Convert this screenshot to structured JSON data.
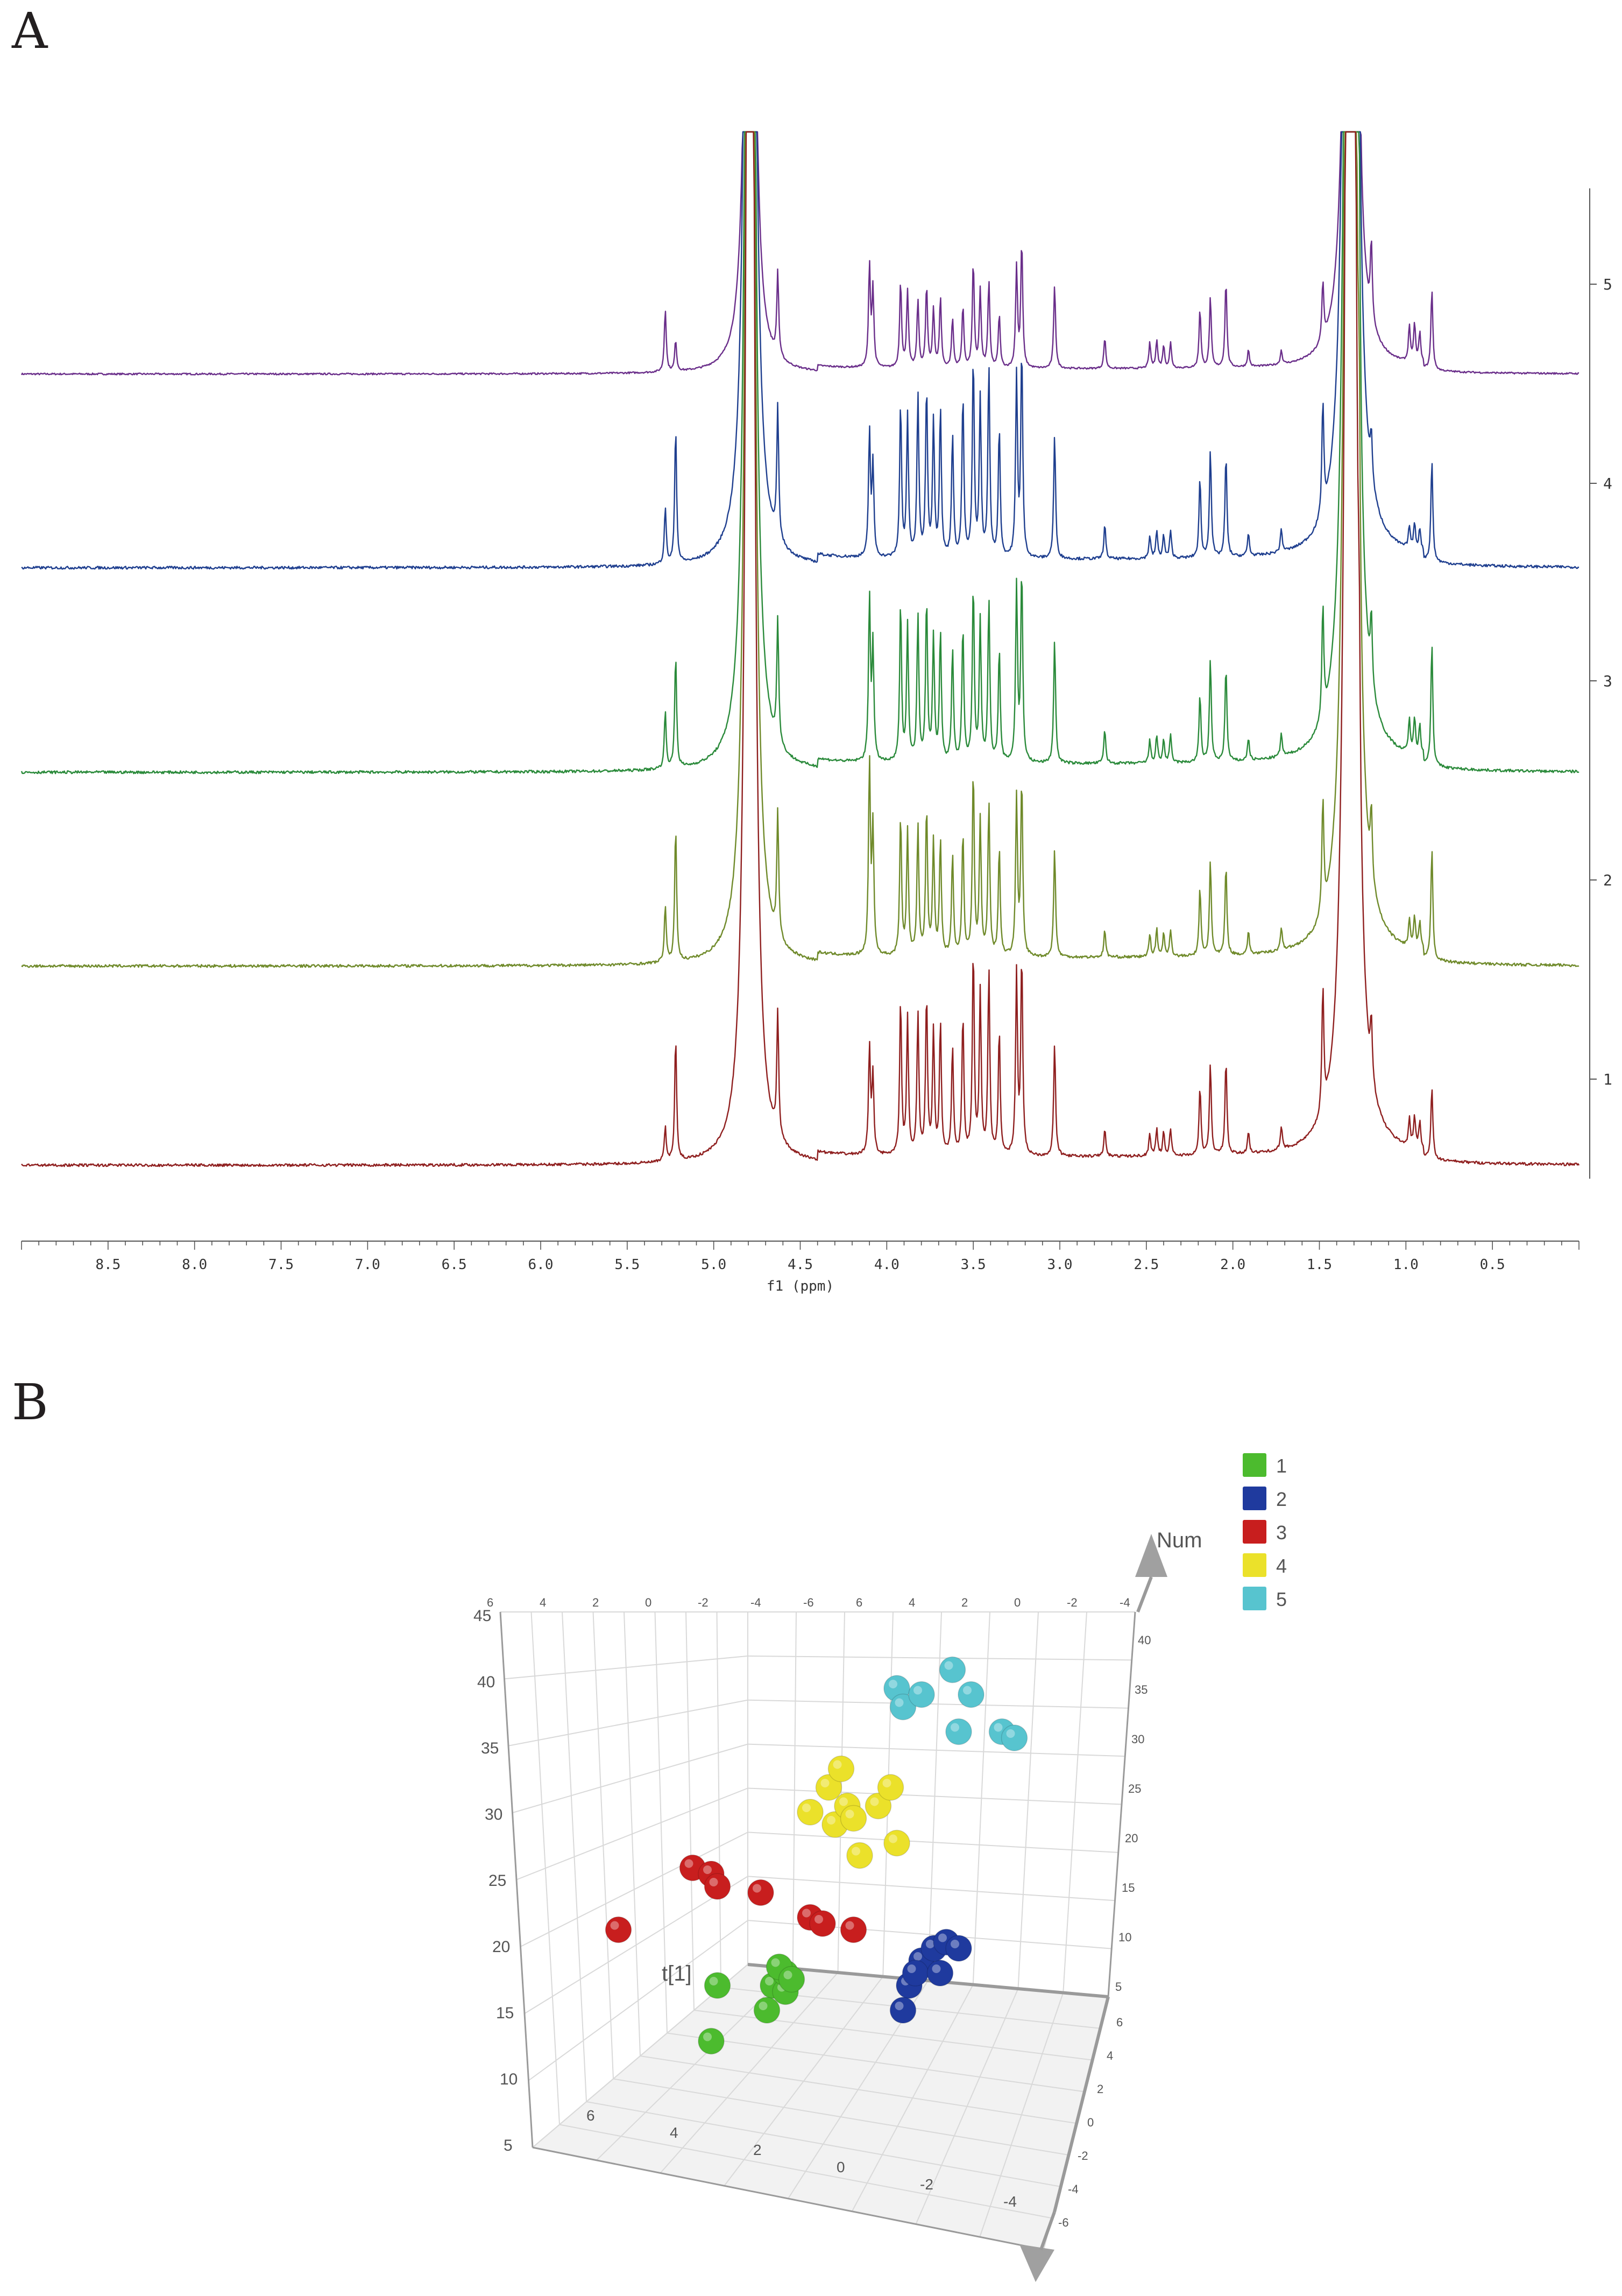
{
  "figure": {
    "panel_a_label": "A",
    "panel_b_label": "B"
  },
  "chart_data": [
    {
      "type": "line",
      "title": "",
      "xlabel": "f1 (ppm)",
      "ylabel": "",
      "xlim": [
        9.0,
        0.0
      ],
      "x_ticks": [
        "8.5",
        "8.0",
        "7.5",
        "7.0",
        "6.5",
        "6.0",
        "5.5",
        "5.0",
        "4.5",
        "4.0",
        "3.5",
        "3.0",
        "2.5",
        "2.0",
        "1.5",
        "1.0",
        "0.5"
      ],
      "trace_labels": [
        "5",
        "4",
        "3",
        "2",
        "1"
      ],
      "series": [
        {
          "name": "5",
          "color": "#6a2e8a",
          "peak_scale": 0.62,
          "peaks": [
            [
              5.28,
              0.45
            ],
            [
              5.22,
              0.22
            ],
            [
              4.79,
              12
            ],
            [
              4.63,
              0.6
            ],
            [
              4.1,
              0.72
            ],
            [
              4.08,
              0.55
            ],
            [
              3.92,
              0.62
            ],
            [
              3.88,
              0.55
            ],
            [
              3.82,
              0.48
            ],
            [
              3.77,
              0.58
            ],
            [
              3.73,
              0.42
            ],
            [
              3.69,
              0.5
            ],
            [
              3.62,
              0.35
            ],
            [
              3.56,
              0.44
            ],
            [
              3.5,
              0.75
            ],
            [
              3.46,
              0.55
            ],
            [
              3.41,
              0.62
            ],
            [
              3.35,
              0.38
            ],
            [
              3.25,
              0.72
            ],
            [
              3.22,
              0.9
            ],
            [
              3.03,
              0.6
            ],
            [
              2.74,
              0.22
            ],
            [
              2.48,
              0.18
            ],
            [
              2.44,
              0.2
            ],
            [
              2.4,
              0.16
            ],
            [
              2.36,
              0.18
            ],
            [
              2.19,
              0.42
            ],
            [
              2.13,
              0.5
            ],
            [
              2.04,
              0.62
            ],
            [
              1.91,
              0.12
            ],
            [
              1.72,
              0.1
            ],
            [
              1.48,
              0.42
            ],
            [
              1.32,
              18
            ],
            [
              1.27,
              0.85
            ],
            [
              1.2,
              0.55
            ],
            [
              0.98,
              0.26
            ],
            [
              0.95,
              0.28
            ],
            [
              0.92,
              0.22
            ],
            [
              0.85,
              0.58
            ]
          ]
        },
        {
          "name": "4",
          "color": "#1f3f8f",
          "peak_scale": 1.0,
          "peaks": [
            [
              5.28,
              0.25
            ],
            [
              5.22,
              0.6
            ],
            [
              4.79,
              12
            ],
            [
              4.63,
              0.58
            ],
            [
              4.1,
              0.55
            ],
            [
              4.08,
              0.4
            ],
            [
              3.92,
              0.68
            ],
            [
              3.88,
              0.62
            ],
            [
              3.82,
              0.72
            ],
            [
              3.77,
              0.75
            ],
            [
              3.73,
              0.6
            ],
            [
              3.69,
              0.66
            ],
            [
              3.62,
              0.55
            ],
            [
              3.56,
              0.72
            ],
            [
              3.5,
              0.88
            ],
            [
              3.46,
              0.7
            ],
            [
              3.41,
              0.85
            ],
            [
              3.35,
              0.58
            ],
            [
              3.25,
              0.8
            ],
            [
              3.22,
              0.92
            ],
            [
              3.03,
              0.55
            ],
            [
              2.74,
              0.15
            ],
            [
              2.48,
              0.1
            ],
            [
              2.44,
              0.12
            ],
            [
              2.4,
              0.1
            ],
            [
              2.36,
              0.12
            ],
            [
              2.19,
              0.35
            ],
            [
              2.13,
              0.48
            ],
            [
              2.04,
              0.45
            ],
            [
              1.91,
              0.1
            ],
            [
              1.72,
              0.1
            ],
            [
              1.48,
              0.5
            ],
            [
              1.32,
              18
            ],
            [
              1.27,
              0.48
            ],
            [
              1.2,
              0.2
            ],
            [
              0.98,
              0.1
            ],
            [
              0.95,
              0.12
            ],
            [
              0.92,
              0.1
            ],
            [
              0.85,
              0.45
            ]
          ]
        },
        {
          "name": "3",
          "color": "#2a8a3a",
          "peak_scale": 1.0,
          "peaks": [
            [
              5.28,
              0.25
            ],
            [
              5.22,
              0.5
            ],
            [
              4.79,
              12
            ],
            [
              4.63,
              0.55
            ],
            [
              4.1,
              0.72
            ],
            [
              4.08,
              0.5
            ],
            [
              3.92,
              0.7
            ],
            [
              3.88,
              0.6
            ],
            [
              3.82,
              0.65
            ],
            [
              3.77,
              0.72
            ],
            [
              3.73,
              0.55
            ],
            [
              3.69,
              0.58
            ],
            [
              3.62,
              0.5
            ],
            [
              3.56,
              0.6
            ],
            [
              3.5,
              0.78
            ],
            [
              3.46,
              0.62
            ],
            [
              3.41,
              0.72
            ],
            [
              3.35,
              0.5
            ],
            [
              3.25,
              0.78
            ],
            [
              3.22,
              0.85
            ],
            [
              3.03,
              0.55
            ],
            [
              2.74,
              0.15
            ],
            [
              2.48,
              0.1
            ],
            [
              2.44,
              0.12
            ],
            [
              2.4,
              0.1
            ],
            [
              2.36,
              0.12
            ],
            [
              2.19,
              0.3
            ],
            [
              2.13,
              0.45
            ],
            [
              2.04,
              0.42
            ],
            [
              1.91,
              0.1
            ],
            [
              1.72,
              0.1
            ],
            [
              1.48,
              0.5
            ],
            [
              1.32,
              18
            ],
            [
              1.27,
              0.78
            ],
            [
              1.2,
              0.3
            ],
            [
              0.98,
              0.15
            ],
            [
              0.95,
              0.16
            ],
            [
              0.92,
              0.14
            ],
            [
              0.85,
              0.55
            ]
          ]
        },
        {
          "name": "2",
          "color": "#6f8a2a",
          "peak_scale": 1.0,
          "peaks": [
            [
              5.28,
              0.25
            ],
            [
              5.22,
              0.6
            ],
            [
              4.79,
              12
            ],
            [
              4.63,
              0.55
            ],
            [
              4.1,
              0.85
            ],
            [
              4.08,
              0.55
            ],
            [
              3.92,
              0.62
            ],
            [
              3.88,
              0.55
            ],
            [
              3.82,
              0.58
            ],
            [
              3.77,
              0.65
            ],
            [
              3.73,
              0.5
            ],
            [
              3.69,
              0.52
            ],
            [
              3.62,
              0.45
            ],
            [
              3.56,
              0.55
            ],
            [
              3.5,
              0.82
            ],
            [
              3.46,
              0.6
            ],
            [
              3.41,
              0.68
            ],
            [
              3.35,
              0.48
            ],
            [
              3.25,
              0.7
            ],
            [
              3.22,
              0.78
            ],
            [
              3.03,
              0.48
            ],
            [
              2.74,
              0.12
            ],
            [
              2.48,
              0.1
            ],
            [
              2.44,
              0.12
            ],
            [
              2.4,
              0.1
            ],
            [
              2.36,
              0.12
            ],
            [
              2.19,
              0.3
            ],
            [
              2.13,
              0.42
            ],
            [
              2.04,
              0.4
            ],
            [
              1.91,
              0.1
            ],
            [
              1.72,
              0.1
            ],
            [
              1.48,
              0.5
            ],
            [
              1.32,
              18
            ],
            [
              1.27,
              0.72
            ],
            [
              1.2,
              0.3
            ],
            [
              0.98,
              0.12
            ],
            [
              0.95,
              0.14
            ],
            [
              0.92,
              0.12
            ],
            [
              0.85,
              0.5
            ]
          ]
        },
        {
          "name": "1",
          "color": "#8f1f1f",
          "peak_scale": 1.0,
          "peaks": [
            [
              5.28,
              0.15
            ],
            [
              5.22,
              0.55
            ],
            [
              4.79,
              12
            ],
            [
              4.63,
              0.55
            ],
            [
              4.1,
              0.48
            ],
            [
              4.08,
              0.35
            ],
            [
              3.92,
              0.68
            ],
            [
              3.88,
              0.6
            ],
            [
              3.82,
              0.62
            ],
            [
              3.77,
              0.7
            ],
            [
              3.73,
              0.55
            ],
            [
              3.69,
              0.58
            ],
            [
              3.62,
              0.48
            ],
            [
              3.56,
              0.62
            ],
            [
              3.5,
              0.9
            ],
            [
              3.46,
              0.72
            ],
            [
              3.41,
              0.82
            ],
            [
              3.35,
              0.55
            ],
            [
              3.25,
              0.8
            ],
            [
              3.22,
              0.88
            ],
            [
              3.03,
              0.5
            ],
            [
              2.74,
              0.12
            ],
            [
              2.48,
              0.1
            ],
            [
              2.44,
              0.12
            ],
            [
              2.4,
              0.1
            ],
            [
              2.36,
              0.12
            ],
            [
              2.19,
              0.3
            ],
            [
              2.13,
              0.4
            ],
            [
              2.04,
              0.42
            ],
            [
              1.91,
              0.1
            ],
            [
              1.72,
              0.1
            ],
            [
              1.48,
              0.55
            ],
            [
              1.32,
              18
            ],
            [
              1.27,
              0.6
            ],
            [
              1.2,
              0.25
            ],
            [
              0.98,
              0.12
            ],
            [
              0.95,
              0.14
            ],
            [
              0.92,
              0.12
            ],
            [
              0.85,
              0.32
            ]
          ]
        }
      ]
    },
    {
      "type": "scatter",
      "title": "",
      "xlabel": "t[1]",
      "zlabel": "Num",
      "left_axis_ticks": [
        "45",
        "40",
        "35",
        "30",
        "25",
        "20",
        "15",
        "10",
        "5"
      ],
      "top_axis_ticks": [
        "6",
        "4",
        "2",
        "0",
        "-2",
        "-4",
        "-6",
        "6",
        "4",
        "2",
        "0",
        "-2",
        "-4"
      ],
      "right_axis_ticks": [
        "40",
        "35",
        "30",
        "25",
        "20",
        "15",
        "10",
        "5"
      ],
      "front_axis_ticks": [
        "6",
        "4",
        "2",
        "0",
        "-2",
        "-4"
      ],
      "depth_axis_ticks": [
        "6",
        "4",
        "2",
        "0",
        "-2",
        "-4",
        "-6"
      ],
      "legend": [
        {
          "label": "1",
          "color": "#4cbb2e"
        },
        {
          "label": "2",
          "color": "#1f3a9e"
        },
        {
          "label": "3",
          "color": "#c81e1e"
        },
        {
          "label": "4",
          "color": "#ebe12a"
        },
        {
          "label": "5",
          "color": "#57c4cf"
        }
      ],
      "points_note": "approximate projected positions (x: left→right in plot plane 0-100, y: bottom→top 0-100) read from rendered view",
      "groups": [
        {
          "label": "1",
          "points": [
            [
              29,
              34
            ],
            [
              28,
              25
            ],
            [
              38,
              34
            ],
            [
              37,
              30
            ],
            [
              40,
              33
            ],
            [
              40,
              36
            ],
            [
              39,
              37
            ],
            [
              41,
              35
            ]
          ]
        },
        {
          "label": "2",
          "points": [
            [
              60,
              34
            ],
            [
              62,
              38
            ],
            [
              61,
              36
            ],
            [
              59,
              30
            ],
            [
              65,
              36
            ],
            [
              64,
              40
            ],
            [
              66,
              41
            ],
            [
              68,
              40
            ]
          ]
        },
        {
          "label": "3",
          "points": [
            [
              13,
              43
            ],
            [
              25,
              53
            ],
            [
              28,
              52
            ],
            [
              29,
              50
            ],
            [
              36,
              49
            ],
            [
              44,
              45
            ],
            [
              46,
              44
            ],
            [
              51,
              43
            ]
          ]
        },
        {
          "label": "4",
          "points": [
            [
              44,
              62
            ],
            [
              47,
              66
            ],
            [
              48,
              60
            ],
            [
              50,
              63
            ],
            [
              51,
              61
            ],
            [
              52,
              55
            ],
            [
              49,
              69
            ],
            [
              55,
              63
            ],
            [
              58,
              57
            ],
            [
              57,
              66
            ]
          ]
        },
        {
          "label": "5",
          "points": [
            [
              58,
              82
            ],
            [
              59,
              79
            ],
            [
              62,
              81
            ],
            [
              67,
              85
            ],
            [
              70,
              81
            ],
            [
              68,
              75
            ],
            [
              75,
              75
            ],
            [
              77,
              74
            ]
          ]
        }
      ]
    }
  ]
}
